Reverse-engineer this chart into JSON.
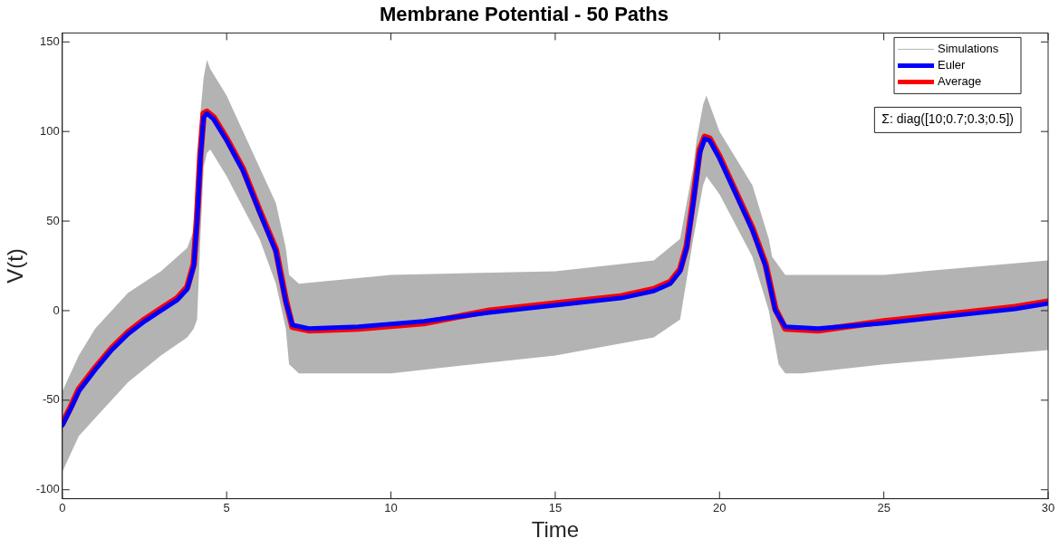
{
  "chart_data": {
    "type": "line",
    "title": "Membrane Potential - 50 Paths",
    "xlabel": "Time",
    "ylabel": "V(t)",
    "xlim": [
      0,
      30
    ],
    "xticks": [
      0,
      5,
      10,
      15,
      20,
      25,
      30
    ],
    "ylim": [
      -105,
      155
    ],
    "yticks": [
      -100,
      -50,
      0,
      50,
      100,
      150
    ],
    "grid": false,
    "legend": "top right",
    "annotations": [
      "Σ: diag([10;0.7;0.3;0.5])"
    ],
    "series": [
      {
        "name": "Simulations",
        "color": "#b3b3b3",
        "x": [
          0,
          0.5,
          1,
          2,
          3,
          3.8,
          4.0,
          4.1,
          4.2,
          4.3,
          4.4,
          4.5,
          5,
          6,
          6.5,
          6.8,
          6.9,
          7.2,
          10,
          15,
          18,
          18.8,
          19.2,
          19.3,
          19.5,
          19.6,
          20,
          21,
          21.5,
          21.6,
          21.8,
          22,
          22.5,
          25,
          30
        ],
        "values": [
          null,
          null,
          null,
          null,
          null,
          null,
          null,
          null,
          null,
          null,
          null,
          null,
          null,
          null,
          null,
          null,
          null,
          null,
          null,
          null,
          null,
          null,
          null,
          null,
          null,
          null,
          null,
          null,
          null,
          null,
          null,
          null,
          null,
          null,
          null
        ],
        "lower": [
          -90,
          -70,
          -60,
          -40,
          -25,
          -15,
          -10,
          -5,
          40,
          80,
          88,
          90,
          75,
          40,
          15,
          -10,
          -30,
          -35,
          -35,
          -25,
          -15,
          -5,
          40,
          50,
          70,
          75,
          65,
          30,
          0,
          -10,
          -30,
          -35,
          -35,
          -30,
          -22
        ],
        "upper": [
          -45,
          -25,
          -10,
          10,
          22,
          35,
          45,
          60,
          110,
          130,
          140,
          135,
          120,
          80,
          60,
          35,
          20,
          15,
          20,
          22,
          28,
          40,
          80,
          95,
          115,
          120,
          100,
          70,
          40,
          30,
          25,
          20,
          20,
          20,
          28
        ]
      },
      {
        "name": "Euler",
        "color": "#0000ff",
        "x": [
          0,
          0.25,
          0.5,
          1,
          1.5,
          2,
          2.5,
          3,
          3.5,
          3.8,
          4.0,
          4.1,
          4.2,
          4.3,
          4.4,
          4.6,
          5,
          5.5,
          6,
          6.5,
          6.8,
          7.0,
          7.5,
          9,
          11,
          13,
          15,
          17,
          18,
          18.5,
          18.8,
          19.0,
          19.2,
          19.4,
          19.55,
          19.7,
          20,
          20.5,
          21,
          21.4,
          21.7,
          22,
          23,
          25,
          27,
          29,
          30
        ],
        "values": [
          -64,
          -55,
          -45,
          -33,
          -22,
          -13,
          -6,
          0,
          6,
          12,
          25,
          50,
          85,
          108,
          110,
          107,
          95,
          78,
          55,
          33,
          5,
          -8,
          -10,
          -9,
          -6,
          -1,
          3,
          7,
          11,
          15,
          22,
          35,
          60,
          88,
          96,
          95,
          85,
          65,
          45,
          25,
          0,
          -9,
          -10,
          -7,
          -3,
          1,
          4
        ]
      },
      {
        "name": "Average",
        "color": "#ff0000",
        "x": [
          0,
          0.25,
          0.5,
          1,
          1.5,
          2,
          2.5,
          3,
          3.5,
          3.8,
          4.0,
          4.1,
          4.2,
          4.3,
          4.4,
          4.6,
          5,
          5.5,
          6,
          6.5,
          6.8,
          7.0,
          7.5,
          9,
          11,
          13,
          15,
          17,
          18,
          18.5,
          18.8,
          19.0,
          19.2,
          19.4,
          19.55,
          19.7,
          20,
          20.5,
          21,
          21.4,
          21.7,
          22,
          23,
          25,
          27,
          29,
          30
        ],
        "values": [
          -63,
          -54,
          -44,
          -32,
          -21,
          -12,
          -5,
          1,
          7,
          13,
          26,
          52,
          87,
          110,
          111,
          108,
          96,
          79,
          56,
          34,
          6,
          -9,
          -11,
          -10,
          -7,
          0,
          4,
          8,
          12,
          16,
          23,
          36,
          62,
          90,
          97,
          96,
          86,
          66,
          46,
          26,
          1,
          -10,
          -11,
          -6,
          -2,
          2,
          5
        ]
      }
    ]
  }
}
